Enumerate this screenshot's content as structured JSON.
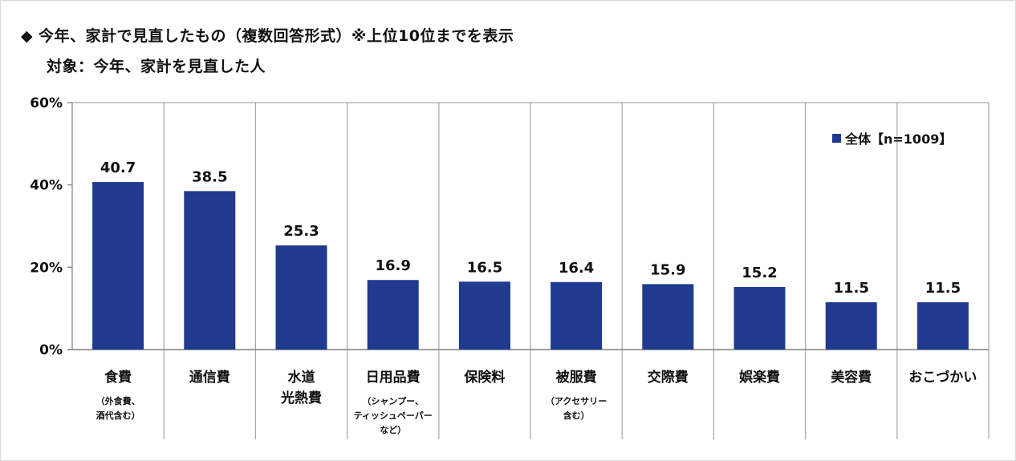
{
  "title_line1": "今年、家計で見直したもの（複数回答形式）※上位10位までを表示",
  "title_bullet": "◆",
  "title_line2": "対象：今年、家計を見直した人",
  "legend_label": "全体【n=1009】",
  "colors": {
    "bar": "#1f3a8f",
    "grid": "#a6a6a6",
    "axis": "#7f7f7f"
  },
  "chart_data": {
    "type": "bar",
    "categories": [
      [
        "食費",
        "（外食費、",
        "酒代含む）"
      ],
      [
        "通信費"
      ],
      [
        "水道",
        "光熱費"
      ],
      [
        "日用品費",
        "（シャンプー、",
        "ティッシュペーパー",
        "など）"
      ],
      [
        "保険料"
      ],
      [
        "被服費",
        "（アクセサリー",
        "含む）"
      ],
      [
        "交際費"
      ],
      [
        "娯楽費"
      ],
      [
        "美容費"
      ],
      [
        "おこづかい"
      ]
    ],
    "series": [
      {
        "name": "全体【n=1009】",
        "values": [
          40.7,
          38.5,
          25.3,
          16.9,
          16.5,
          16.4,
          15.9,
          15.2,
          11.5,
          11.5
        ]
      }
    ],
    "value_labels": [
      "40.7",
      "38.5",
      "25.3",
      "16.9",
      "16.5",
      "16.4",
      "15.9",
      "15.2",
      "11.5",
      "11.5"
    ],
    "yticks": [
      "0%",
      "20%",
      "40%",
      "60%"
    ],
    "ylim": [
      0,
      60
    ],
    "legend_position": "top-right",
    "grid": "vertical separators"
  }
}
